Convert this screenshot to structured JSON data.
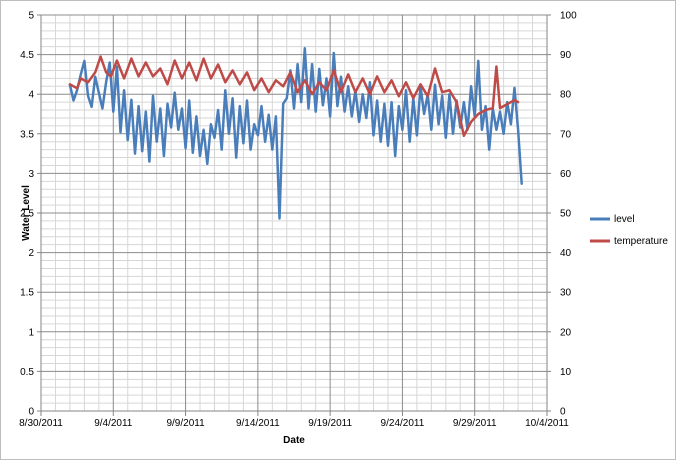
{
  "chart_data": {
    "type": "line",
    "title": "",
    "xlabel": "Date",
    "ylabel": "Water Level",
    "y2label": "",
    "xlim": [
      "2011-08-30",
      "2011-10-04"
    ],
    "ylim": [
      0,
      5
    ],
    "y2lim": [
      0,
      100
    ],
    "x_ticks": [
      "8/30/2011",
      "9/4/2011",
      "9/9/2011",
      "9/14/2011",
      "9/19/2011",
      "9/24/2011",
      "9/29/2011",
      "10/4/2011"
    ],
    "y_ticks": [
      "0",
      "0.5",
      "1",
      "1.5",
      "2",
      "2.5",
      "3",
      "3.5",
      "4",
      "4.5",
      "5"
    ],
    "y2_ticks": [
      "0",
      "10",
      "20",
      "30",
      "40",
      "50",
      "60",
      "70",
      "80",
      "90",
      "100"
    ],
    "grid": true,
    "legend_position": "right",
    "series": [
      {
        "name": "level",
        "axis": "left",
        "color": "#4a7ebb",
        "points": [
          [
            "2011-09-01 00:00",
            4.12
          ],
          [
            "2011-09-01 06:00",
            3.92
          ],
          [
            "2011-09-01 12:00",
            4.05
          ],
          [
            "2011-09-01 18:00",
            4.25
          ],
          [
            "2011-09-02 00:00",
            4.42
          ],
          [
            "2011-09-02 06:00",
            3.98
          ],
          [
            "2011-09-02 12:00",
            3.84
          ],
          [
            "2011-09-02 18:00",
            4.22
          ],
          [
            "2011-09-03 00:00",
            4.02
          ],
          [
            "2011-09-03 06:00",
            3.82
          ],
          [
            "2011-09-03 12:00",
            4.15
          ],
          [
            "2011-09-03 18:00",
            4.4
          ],
          [
            "2011-09-04 00:00",
            3.78
          ],
          [
            "2011-09-04 06:00",
            4.35
          ],
          [
            "2011-09-04 12:00",
            3.52
          ],
          [
            "2011-09-04 18:00",
            4.05
          ],
          [
            "2011-09-05 00:00",
            3.42
          ],
          [
            "2011-09-05 06:00",
            3.93
          ],
          [
            "2011-09-05 12:00",
            3.25
          ],
          [
            "2011-09-05 18:00",
            3.85
          ],
          [
            "2011-09-06 00:00",
            3.28
          ],
          [
            "2011-09-06 06:00",
            3.78
          ],
          [
            "2011-09-06 12:00",
            3.15
          ],
          [
            "2011-09-06 18:00",
            3.98
          ],
          [
            "2011-09-07 00:00",
            3.4
          ],
          [
            "2011-09-07 06:00",
            3.82
          ],
          [
            "2011-09-07 12:00",
            3.22
          ],
          [
            "2011-09-07 18:00",
            3.88
          ],
          [
            "2011-09-08 00:00",
            3.58
          ],
          [
            "2011-09-08 06:00",
            4.02
          ],
          [
            "2011-09-08 12:00",
            3.55
          ],
          [
            "2011-09-08 18:00",
            3.82
          ],
          [
            "2011-09-09 00:00",
            3.32
          ],
          [
            "2011-09-09 06:00",
            3.92
          ],
          [
            "2011-09-09 12:00",
            3.26
          ],
          [
            "2011-09-09 18:00",
            3.72
          ],
          [
            "2011-09-10 00:00",
            3.22
          ],
          [
            "2011-09-10 06:00",
            3.55
          ],
          [
            "2011-09-10 12:00",
            3.12
          ],
          [
            "2011-09-10 18:00",
            3.62
          ],
          [
            "2011-09-11 00:00",
            3.45
          ],
          [
            "2011-09-11 06:00",
            3.8
          ],
          [
            "2011-09-11 12:00",
            3.3
          ],
          [
            "2011-09-11 18:00",
            4.05
          ],
          [
            "2011-09-12 00:00",
            3.5
          ],
          [
            "2011-09-12 06:00",
            3.95
          ],
          [
            "2011-09-12 12:00",
            3.2
          ],
          [
            "2011-09-12 18:00",
            3.85
          ],
          [
            "2011-09-13 00:00",
            3.38
          ],
          [
            "2011-09-13 06:00",
            3.92
          ],
          [
            "2011-09-13 12:00",
            3.3
          ],
          [
            "2011-09-13 18:00",
            3.62
          ],
          [
            "2011-09-14 00:00",
            3.48
          ],
          [
            "2011-09-14 06:00",
            3.85
          ],
          [
            "2011-09-14 12:00",
            3.4
          ],
          [
            "2011-09-14 18:00",
            3.74
          ],
          [
            "2011-09-15 00:00",
            3.3
          ],
          [
            "2011-09-15 06:00",
            3.72
          ],
          [
            "2011-09-15 12:00",
            2.43
          ],
          [
            "2011-09-15 18:00",
            3.88
          ],
          [
            "2011-09-16 00:00",
            3.95
          ],
          [
            "2011-09-16 06:00",
            4.3
          ],
          [
            "2011-09-16 12:00",
            3.82
          ],
          [
            "2011-09-16 18:00",
            4.38
          ],
          [
            "2011-09-17 00:00",
            3.9
          ],
          [
            "2011-09-17 06:00",
            4.58
          ],
          [
            "2011-09-17 12:00",
            3.82
          ],
          [
            "2011-09-17 18:00",
            4.38
          ],
          [
            "2011-09-18 00:00",
            3.78
          ],
          [
            "2011-09-18 06:00",
            4.32
          ],
          [
            "2011-09-18 12:00",
            3.86
          ],
          [
            "2011-09-18 18:00",
            4.2
          ],
          [
            "2011-09-19 00:00",
            3.72
          ],
          [
            "2011-09-19 06:00",
            4.52
          ],
          [
            "2011-09-19 12:00",
            3.85
          ],
          [
            "2011-09-19 18:00",
            4.22
          ],
          [
            "2011-09-20 00:00",
            3.78
          ],
          [
            "2011-09-20 06:00",
            4.1
          ],
          [
            "2011-09-20 12:00",
            3.72
          ],
          [
            "2011-09-20 18:00",
            4.05
          ],
          [
            "2011-09-21 00:00",
            3.65
          ],
          [
            "2011-09-21 06:00",
            4.0
          ],
          [
            "2011-09-21 12:00",
            3.7
          ],
          [
            "2011-09-21 18:00",
            4.15
          ],
          [
            "2011-09-22 00:00",
            3.48
          ],
          [
            "2011-09-22 06:00",
            3.92
          ],
          [
            "2011-09-22 12:00",
            3.4
          ],
          [
            "2011-09-22 18:00",
            3.88
          ],
          [
            "2011-09-23 00:00",
            3.35
          ],
          [
            "2011-09-23 06:00",
            3.9
          ],
          [
            "2011-09-23 12:00",
            3.22
          ],
          [
            "2011-09-23 18:00",
            3.85
          ],
          [
            "2011-09-24 00:00",
            3.55
          ],
          [
            "2011-09-24 06:00",
            4.05
          ],
          [
            "2011-09-24 12:00",
            3.4
          ],
          [
            "2011-09-24 18:00",
            3.95
          ],
          [
            "2011-09-25 00:00",
            3.48
          ],
          [
            "2011-09-25 06:00",
            4.1
          ],
          [
            "2011-09-25 12:00",
            3.75
          ],
          [
            "2011-09-25 18:00",
            4.0
          ],
          [
            "2011-09-26 00:00",
            3.55
          ],
          [
            "2011-09-26 06:00",
            4.12
          ],
          [
            "2011-09-26 12:00",
            3.62
          ],
          [
            "2011-09-26 18:00",
            3.98
          ],
          [
            "2011-09-27 00:00",
            3.45
          ],
          [
            "2011-09-27 06:00",
            4.0
          ],
          [
            "2011-09-27 12:00",
            3.5
          ],
          [
            "2011-09-27 18:00",
            3.92
          ],
          [
            "2011-09-28 00:00",
            3.58
          ],
          [
            "2011-09-28 06:00",
            3.9
          ],
          [
            "2011-09-28 12:00",
            3.55
          ],
          [
            "2011-09-28 18:00",
            4.1
          ],
          [
            "2011-09-29 00:00",
            3.72
          ],
          [
            "2011-09-29 06:00",
            4.42
          ],
          [
            "2011-09-29 12:00",
            3.55
          ],
          [
            "2011-09-29 18:00",
            3.85
          ],
          [
            "2011-09-30 00:00",
            3.3
          ],
          [
            "2011-09-30 06:00",
            3.82
          ],
          [
            "2011-09-30 12:00",
            3.55
          ],
          [
            "2011-09-30 18:00",
            3.78
          ],
          [
            "2011-10-01 00:00",
            3.5
          ],
          [
            "2011-10-01 06:00",
            3.9
          ],
          [
            "2011-10-01 12:00",
            3.62
          ],
          [
            "2011-10-01 18:00",
            4.08
          ],
          [
            "2011-10-02 00:00",
            3.55
          ],
          [
            "2011-10-02 06:00",
            2.87
          ]
        ]
      },
      {
        "name": "temperature",
        "axis": "right",
        "color": "#be4b48",
        "points": [
          [
            "2011-09-01 00:00",
            82.5
          ],
          [
            "2011-09-01 12:00",
            81.5
          ],
          [
            "2011-09-01 18:00",
            84.0
          ],
          [
            "2011-09-02 06:00",
            83.0
          ],
          [
            "2011-09-02 18:00",
            85.5
          ],
          [
            "2011-09-03 03:00",
            89.5
          ],
          [
            "2011-09-03 12:00",
            85.5
          ],
          [
            "2011-09-03 20:00",
            84.5
          ],
          [
            "2011-09-04 06:00",
            88.5
          ],
          [
            "2011-09-04 18:00",
            84.0
          ],
          [
            "2011-09-05 06:00",
            89.0
          ],
          [
            "2011-09-05 18:00",
            84.5
          ],
          [
            "2011-09-06 06:00",
            88.0
          ],
          [
            "2011-09-06 18:00",
            84.5
          ],
          [
            "2011-09-07 06:00",
            86.5
          ],
          [
            "2011-09-07 18:00",
            82.5
          ],
          [
            "2011-09-08 06:00",
            88.5
          ],
          [
            "2011-09-08 18:00",
            84.0
          ],
          [
            "2011-09-09 06:00",
            88.0
          ],
          [
            "2011-09-09 18:00",
            83.5
          ],
          [
            "2011-09-10 06:00",
            89.0
          ],
          [
            "2011-09-10 18:00",
            84.0
          ],
          [
            "2011-09-11 06:00",
            87.5
          ],
          [
            "2011-09-11 18:00",
            83.0
          ],
          [
            "2011-09-12 06:00",
            86.0
          ],
          [
            "2011-09-12 18:00",
            82.5
          ],
          [
            "2011-09-13 06:00",
            85.5
          ],
          [
            "2011-09-13 18:00",
            81.0
          ],
          [
            "2011-09-14 06:00",
            84.0
          ],
          [
            "2011-09-14 18:00",
            80.5
          ],
          [
            "2011-09-15 06:00",
            83.5
          ],
          [
            "2011-09-15 18:00",
            82.0
          ],
          [
            "2011-09-16 06:00",
            85.5
          ],
          [
            "2011-09-16 18:00",
            80.5
          ],
          [
            "2011-09-17 06:00",
            83.5
          ],
          [
            "2011-09-17 18:00",
            80.0
          ],
          [
            "2011-09-18 06:00",
            83.0
          ],
          [
            "2011-09-18 18:00",
            81.0
          ],
          [
            "2011-09-19 06:00",
            86.0
          ],
          [
            "2011-09-19 18:00",
            80.5
          ],
          [
            "2011-09-20 06:00",
            85.0
          ],
          [
            "2011-09-20 18:00",
            80.5
          ],
          [
            "2011-09-21 06:00",
            84.0
          ],
          [
            "2011-09-21 18:00",
            80.0
          ],
          [
            "2011-09-22 06:00",
            84.5
          ],
          [
            "2011-09-22 18:00",
            80.5
          ],
          [
            "2011-09-23 06:00",
            83.5
          ],
          [
            "2011-09-23 18:00",
            79.5
          ],
          [
            "2011-09-24 06:00",
            83.0
          ],
          [
            "2011-09-24 18:00",
            79.0
          ],
          [
            "2011-09-25 06:00",
            82.5
          ],
          [
            "2011-09-25 18:00",
            79.5
          ],
          [
            "2011-09-26 06:00",
            86.5
          ],
          [
            "2011-09-26 18:00",
            80.5
          ],
          [
            "2011-09-27 06:00",
            81.0
          ],
          [
            "2011-09-27 18:00",
            78.0
          ],
          [
            "2011-09-28 06:00",
            69.5
          ],
          [
            "2011-09-28 18:00",
            73.0
          ],
          [
            "2011-09-29 06:00",
            75.0
          ],
          [
            "2011-09-29 18:00",
            76.0
          ],
          [
            "2011-09-30 06:00",
            76.5
          ],
          [
            "2011-09-30 12:00",
            87.0
          ],
          [
            "2011-09-30 18:00",
            76.5
          ],
          [
            "2011-10-01 06:00",
            77.5
          ],
          [
            "2011-10-01 18:00",
            78.5
          ],
          [
            "2011-10-02 00:00",
            78.0
          ]
        ]
      }
    ]
  }
}
